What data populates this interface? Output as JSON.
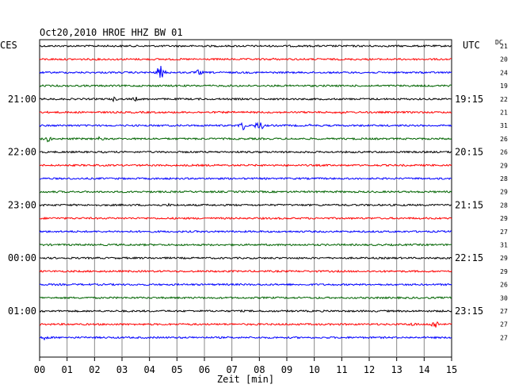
{
  "chart_data": {
    "type": "line",
    "title": "Oct20,2010   HROE HHZ BW 01",
    "left_timezone": "CES",
    "right_timezone": "UTC",
    "dc_header": "DC",
    "xlabel": "Zeit [min]",
    "xlim": [
      0,
      15
    ],
    "x_ticks": [
      "00",
      "01",
      "02",
      "03",
      "04",
      "05",
      "06",
      "07",
      "08",
      "09",
      "10",
      "11",
      "12",
      "13",
      "14",
      "15"
    ],
    "left_hour_labels": [
      "21:00",
      "22:00",
      "23:00",
      "00:00",
      "01:00"
    ],
    "right_hour_labels": [
      "19:15",
      "20:15",
      "21:15",
      "22:15",
      "23:15"
    ],
    "colors": [
      "#000000",
      "#ff0000",
      "#0000ff",
      "#006400"
    ],
    "dc_values": [
      "21",
      "20",
      "24",
      "19",
      "22",
      "21",
      "31",
      "26",
      "26",
      "29",
      "28",
      "29",
      "28",
      "29",
      "27",
      "31",
      "29",
      "29",
      "26",
      "30",
      "27",
      "27",
      "27"
    ],
    "events": [
      {
        "trace": 1,
        "minute": 8.5,
        "amp": 2
      },
      {
        "trace": 2,
        "minute": 4.4,
        "amp": 9
      },
      {
        "trace": 2,
        "minute": 5.8,
        "amp": 4
      },
      {
        "trace": 4,
        "minute": 2.7,
        "amp": 3
      },
      {
        "trace": 4,
        "minute": 3.5,
        "amp": 3
      },
      {
        "trace": 5,
        "minute": 11.0,
        "amp": 2
      },
      {
        "trace": 6,
        "minute": 7.4,
        "amp": 6
      },
      {
        "trace": 6,
        "minute": 8.0,
        "amp": 7
      },
      {
        "trace": 6,
        "minute": 9.8,
        "amp": 2
      },
      {
        "trace": 7,
        "minute": 0.3,
        "amp": 4
      },
      {
        "trace": 7,
        "minute": 2.2,
        "amp": 3
      },
      {
        "trace": 12,
        "minute": 4.7,
        "amp": 2
      },
      {
        "trace": 21,
        "minute": 13.6,
        "amp": 3
      },
      {
        "trace": 21,
        "minute": 14.4,
        "amp": 6
      },
      {
        "trace": 22,
        "minute": 0.2,
        "amp": 3
      }
    ]
  }
}
